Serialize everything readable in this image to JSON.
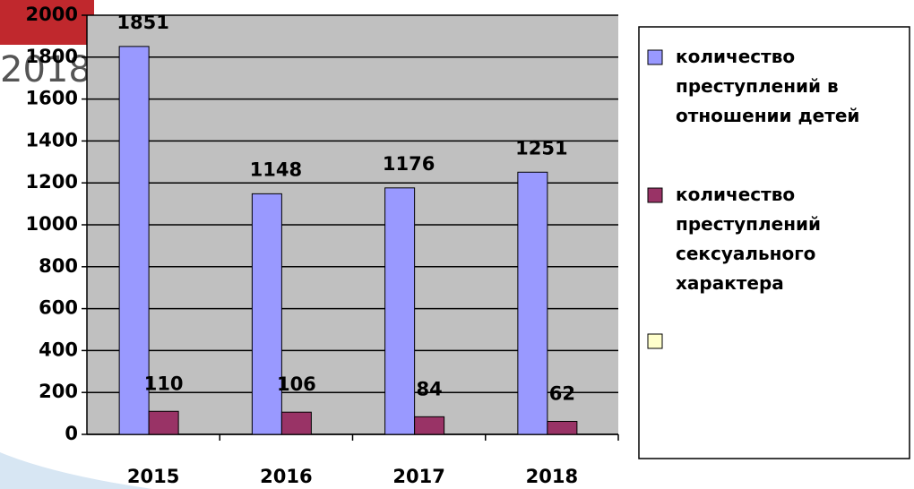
{
  "background_text": "2018",
  "chart_data": {
    "type": "bar",
    "categories": [
      "2015",
      "2016",
      "2017",
      "2018"
    ],
    "series": [
      {
        "name": "количество преступлений в отношении детей",
        "color": "#9999ff",
        "values": [
          1851,
          1148,
          1176,
          1251
        ]
      },
      {
        "name": "количество преступлений сексуального характера",
        "color": "#993366",
        "values": [
          110,
          106,
          84,
          62
        ]
      }
    ],
    "ylim": [
      0,
      2000
    ],
    "yticks": [
      0,
      200,
      400,
      600,
      800,
      1000,
      1200,
      1400,
      1600,
      1800,
      2000
    ],
    "grid": true,
    "legend": "right"
  }
}
